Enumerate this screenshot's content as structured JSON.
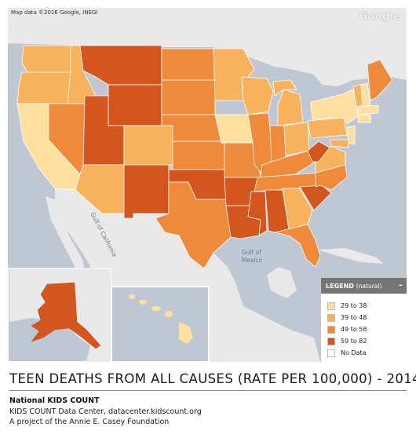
{
  "map": {
    "attribution": "Map data ©2016 Google, INEGI",
    "logo": "Google",
    "water_labels": [
      "Gulf of California",
      "Gulf of Mexico"
    ],
    "colors": {
      "bin1": "#fde0a0",
      "bin2": "#f9b25c",
      "bin3": "#ef8a3a",
      "bin4": "#d4561f",
      "no_data": "#ffffff",
      "land": "#e9e9e9",
      "water": "#bfc7d2"
    },
    "states": [
      {
        "name": "Washington",
        "bin": 2
      },
      {
        "name": "Oregon",
        "bin": 2
      },
      {
        "name": "California",
        "bin": 1
      },
      {
        "name": "Nevada",
        "bin": 3
      },
      {
        "name": "Idaho",
        "bin": 2
      },
      {
        "name": "Montana",
        "bin": 4
      },
      {
        "name": "Wyoming",
        "bin": 4
      },
      {
        "name": "Utah",
        "bin": 4
      },
      {
        "name": "Arizona",
        "bin": 2
      },
      {
        "name": "Colorado",
        "bin": 2
      },
      {
        "name": "New Mexico",
        "bin": 4
      },
      {
        "name": "North Dakota",
        "bin": 3
      },
      {
        "name": "South Dakota",
        "bin": 3
      },
      {
        "name": "Nebraska",
        "bin": 3
      },
      {
        "name": "Kansas",
        "bin": 3
      },
      {
        "name": "Oklahoma",
        "bin": 4
      },
      {
        "name": "Texas",
        "bin": 3
      },
      {
        "name": "Minnesota",
        "bin": 2
      },
      {
        "name": "Iowa",
        "bin": 1
      },
      {
        "name": "Missouri",
        "bin": 3
      },
      {
        "name": "Arkansas",
        "bin": 4
      },
      {
        "name": "Louisiana",
        "bin": 4
      },
      {
        "name": "Wisconsin",
        "bin": 2
      },
      {
        "name": "Illinois",
        "bin": 3
      },
      {
        "name": "Michigan",
        "bin": 2
      },
      {
        "name": "Indiana",
        "bin": 3
      },
      {
        "name": "Ohio",
        "bin": 2
      },
      {
        "name": "Kentucky",
        "bin": 3
      },
      {
        "name": "Tennessee",
        "bin": 3
      },
      {
        "name": "Mississippi",
        "bin": 4
      },
      {
        "name": "Alabama",
        "bin": 4
      },
      {
        "name": "Georgia",
        "bin": 2
      },
      {
        "name": "Florida",
        "bin": 3
      },
      {
        "name": "South Carolina",
        "bin": 4
      },
      {
        "name": "North Carolina",
        "bin": 3
      },
      {
        "name": "Virginia",
        "bin": 2
      },
      {
        "name": "West Virginia",
        "bin": 4
      },
      {
        "name": "Pennsylvania",
        "bin": 2
      },
      {
        "name": "New York",
        "bin": 1
      },
      {
        "name": "Vermont",
        "bin": 2
      },
      {
        "name": "New Hampshire",
        "bin": 1
      },
      {
        "name": "Maine",
        "bin": 3
      },
      {
        "name": "Massachusetts",
        "bin": 1
      },
      {
        "name": "Connecticut",
        "bin": 1
      },
      {
        "name": "New Jersey",
        "bin": 1
      },
      {
        "name": "Maryland",
        "bin": 2
      },
      {
        "name": "Alaska",
        "bin": 4
      },
      {
        "name": "Hawaii",
        "bin": 1
      }
    ]
  },
  "legend": {
    "title": "LEGEND",
    "subtitle": "(natural)",
    "minimize_glyph": "–",
    "items": [
      {
        "label": "29 to 38",
        "color": "#fde0a0"
      },
      {
        "label": "39 to 48",
        "color": "#f9b25c"
      },
      {
        "label": "49 to 58",
        "color": "#ef8a3a"
      },
      {
        "label": "59 to 82",
        "color": "#d4561f"
      },
      {
        "label": "No Data",
        "color": "#ffffff"
      }
    ]
  },
  "title": "TEEN DEATHS FROM ALL CAUSES (RATE PER 100,000) - 2014",
  "source": {
    "name": "National KIDS COUNT",
    "line1": "KIDS COUNT Data Center, datacenter.kidscount.org",
    "line2": "A project of the Annie E. Casey Foundation"
  }
}
